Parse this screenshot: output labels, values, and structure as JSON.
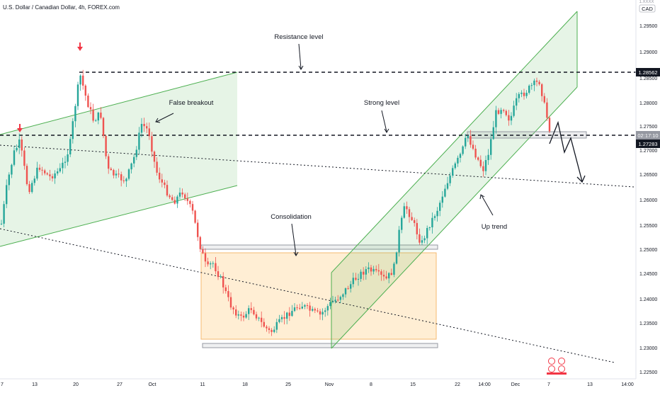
{
  "header": {
    "title": "U.S. Dollar / Canadian Dollar, 4h, FOREX.com"
  },
  "currency_badge": {
    "label": "CAD",
    "marker": "1.XXXX"
  },
  "chart_data": {
    "type": "candlestick",
    "symbol": "USDCAD",
    "timeframe": "4h",
    "y_axis": {
      "ticks": [
        "1.29500",
        "1.29000",
        "1.28500",
        "1.28000",
        "1.27500",
        "1.27000",
        "1.26500",
        "1.26000",
        "1.25500",
        "1.25000",
        "1.24500",
        "1.24000",
        "1.23500",
        "1.23000",
        "1.22500"
      ],
      "ylim": [
        1.2225,
        1.3005
      ]
    },
    "x_axis": {
      "ticks": [
        "7",
        "13",
        "20",
        "27",
        "Oct",
        "11",
        "18",
        "25",
        "Nov",
        "8",
        "15",
        "22",
        "14:00",
        "Dec",
        "7",
        "13",
        "14:00"
      ]
    },
    "price_labels": [
      {
        "text": "1.28562",
        "value": 1.28562,
        "style": "dark"
      },
      {
        "text": "02:17:10",
        "value": 1.27395,
        "style": "gray"
      },
      {
        "text": "1.27283",
        "value": 1.27283,
        "style": "dark"
      }
    ],
    "annotations": [
      {
        "text": "Resistance level"
      },
      {
        "text": "False breakout"
      },
      {
        "text": "Strong level"
      },
      {
        "text": "Consolidation"
      },
      {
        "text": "Up trend"
      }
    ],
    "levels": {
      "resistance": 1.28562,
      "strong": 1.27283,
      "consolidation_range": [
        1.23,
        1.2507
      ]
    },
    "colors": {
      "up": "#26a69a",
      "down": "#ef5350",
      "channel": "#4caf50",
      "channel_fill": "rgba(76,175,80,0.14)",
      "consolidation_fill": "rgba(255,152,0,0.17)",
      "consolidation_stroke": "#f5b971",
      "level_line": "#131722",
      "axis_text": "#131722",
      "gray_box": "#9598a1"
    }
  }
}
